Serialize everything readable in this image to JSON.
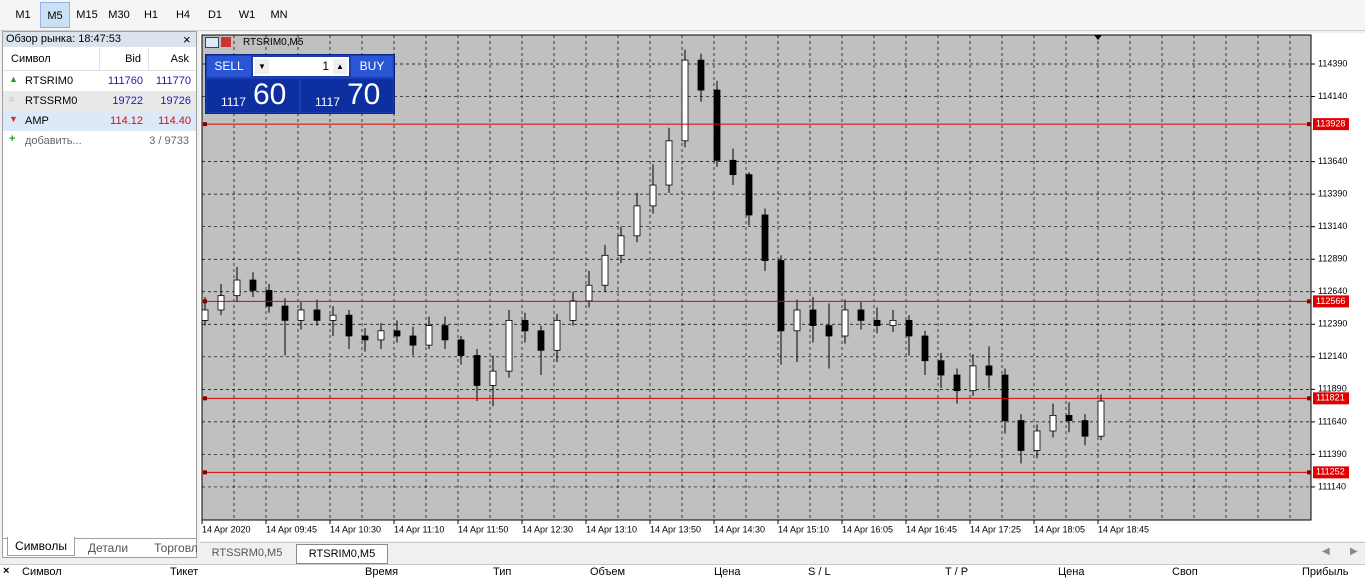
{
  "toolbar": {
    "timeframes": [
      "M1",
      "M5",
      "M15",
      "M30",
      "H1",
      "H4",
      "D1",
      "W1",
      "MN"
    ],
    "selected": 1
  },
  "market_watch": {
    "title": "Обзор рынка: 18:47:53",
    "close": "×",
    "columns": [
      "Символ",
      "Bid",
      "Ask"
    ],
    "rows": [
      [
        "RTSRIM0",
        "111760",
        "111770"
      ],
      [
        "RTSSRM0",
        "19722",
        "19726"
      ],
      [
        "AMP",
        "114.12",
        "114.40"
      ]
    ],
    "add": "добавить...",
    "count": "3 / 9733",
    "tabs": [
      "Символы",
      "Детали",
      "Торговл"
    ]
  },
  "chart_tabs": [
    "RTSSRM0,M5",
    "RTSRIM0,M5"
  ],
  "trade_panel": {
    "sell": "SELL",
    "volume": "1",
    "buy": "BUY",
    "bid_big": "1117",
    "bid_small": "60",
    "ask_big": "1117",
    "ask_small": "70"
  },
  "positions_header": [
    "Символ",
    "Тикет",
    "Время",
    "Тип",
    "Объем",
    "Цена",
    "S / L",
    "T / P",
    "Цена",
    "Своп",
    "Прибыль"
  ],
  "chart_data": {
    "type": "candlestick",
    "title": "RTSRIM0,M5",
    "candles": [
      [
        112420,
        112600,
        112380,
        112500
      ],
      [
        112500,
        112700,
        112460,
        112610
      ],
      [
        112610,
        112830,
        112560,
        112730
      ],
      [
        112730,
        112790,
        112600,
        112650
      ],
      [
        112650,
        112700,
        112480,
        112530
      ],
      [
        112530,
        112590,
        112150,
        112420
      ],
      [
        112420,
        112560,
        112350,
        112500
      ],
      [
        112500,
        112580,
        112380,
        112420
      ],
      [
        112420,
        112530,
        112300,
        112460
      ],
      [
        112460,
        112500,
        112200,
        112300
      ],
      [
        112300,
        112360,
        112180,
        112270
      ],
      [
        112270,
        112400,
        112200,
        112340
      ],
      [
        112340,
        112420,
        112250,
        112300
      ],
      [
        112300,
        112370,
        112150,
        112230
      ],
      [
        112230,
        112450,
        112200,
        112380
      ],
      [
        112380,
        112450,
        112200,
        112270
      ],
      [
        112270,
        112300,
        112080,
        112150
      ],
      [
        112150,
        112200,
        111800,
        111920
      ],
      [
        111920,
        112150,
        111760,
        112030
      ],
      [
        112030,
        112500,
        111980,
        112420
      ],
      [
        112420,
        112480,
        112250,
        112340
      ],
      [
        112340,
        112380,
        112000,
        112190
      ],
      [
        112190,
        112470,
        112100,
        112420
      ],
      [
        112420,
        112640,
        112380,
        112570
      ],
      [
        112570,
        112800,
        112520,
        112690
      ],
      [
        112690,
        113000,
        112640,
        112920
      ],
      [
        112920,
        113140,
        112860,
        113070
      ],
      [
        113070,
        113400,
        113020,
        113300
      ],
      [
        113300,
        113620,
        113240,
        113460
      ],
      [
        113460,
        113900,
        113400,
        113800
      ],
      [
        113800,
        114500,
        113750,
        114420
      ],
      [
        114420,
        114470,
        114100,
        114190
      ],
      [
        114190,
        114260,
        113600,
        113650
      ],
      [
        113650,
        113740,
        113460,
        113540
      ],
      [
        113540,
        113560,
        113150,
        113230
      ],
      [
        113230,
        113280,
        112800,
        112880
      ],
      [
        112880,
        112920,
        112080,
        112340
      ],
      [
        112340,
        112580,
        112100,
        112500
      ],
      [
        112500,
        112600,
        112250,
        112380
      ],
      [
        112380,
        112550,
        112050,
        112300
      ],
      [
        112300,
        112580,
        112240,
        112500
      ],
      [
        112500,
        112560,
        112350,
        112420
      ],
      [
        112420,
        112520,
        112320,
        112380
      ],
      [
        112380,
        112500,
        112330,
        112420
      ],
      [
        112420,
        112460,
        112150,
        112300
      ],
      [
        112300,
        112340,
        112000,
        112110
      ],
      [
        112110,
        112170,
        111900,
        112000
      ],
      [
        112000,
        112050,
        111780,
        111880
      ],
      [
        111880,
        112160,
        111840,
        112070
      ],
      [
        112070,
        112220,
        111900,
        112000
      ],
      [
        112000,
        112050,
        111550,
        111650
      ],
      [
        111650,
        111700,
        111320,
        111420
      ],
      [
        111420,
        111620,
        111360,
        111570
      ],
      [
        111570,
        111780,
        111520,
        111690
      ],
      [
        111690,
        111790,
        111560,
        111650
      ],
      [
        111650,
        111700,
        111460,
        111530
      ],
      [
        111530,
        111850,
        111500,
        111800
      ]
    ],
    "x_labels": [
      "14 Apr 2020",
      "14 Apr 09:45",
      "14 Apr 10:30",
      "14 Apr 11:10",
      "14 Apr 11:50",
      "14 Apr 12:30",
      "14 Apr 13:10",
      "14 Apr 13:50",
      "14 Apr 14:30",
      "14 Apr 15:10",
      "14 Apr 16:05",
      "14 Apr 16:45",
      "14 Apr 17:25",
      "14 Apr 18:05",
      "14 Apr 18:45"
    ],
    "ylim": [
      110886,
      114613
    ],
    "yticks": [
      111140,
      111390,
      111640,
      111890,
      112140,
      112390,
      112640,
      112890,
      113140,
      113390,
      113640,
      114140,
      114390
    ],
    "levels": [
      113928,
      112566,
      111821,
      111252
    ],
    "grid": true,
    "up_color": "#ffffff",
    "down_color": "#000000",
    "level_color": "#e00000"
  }
}
